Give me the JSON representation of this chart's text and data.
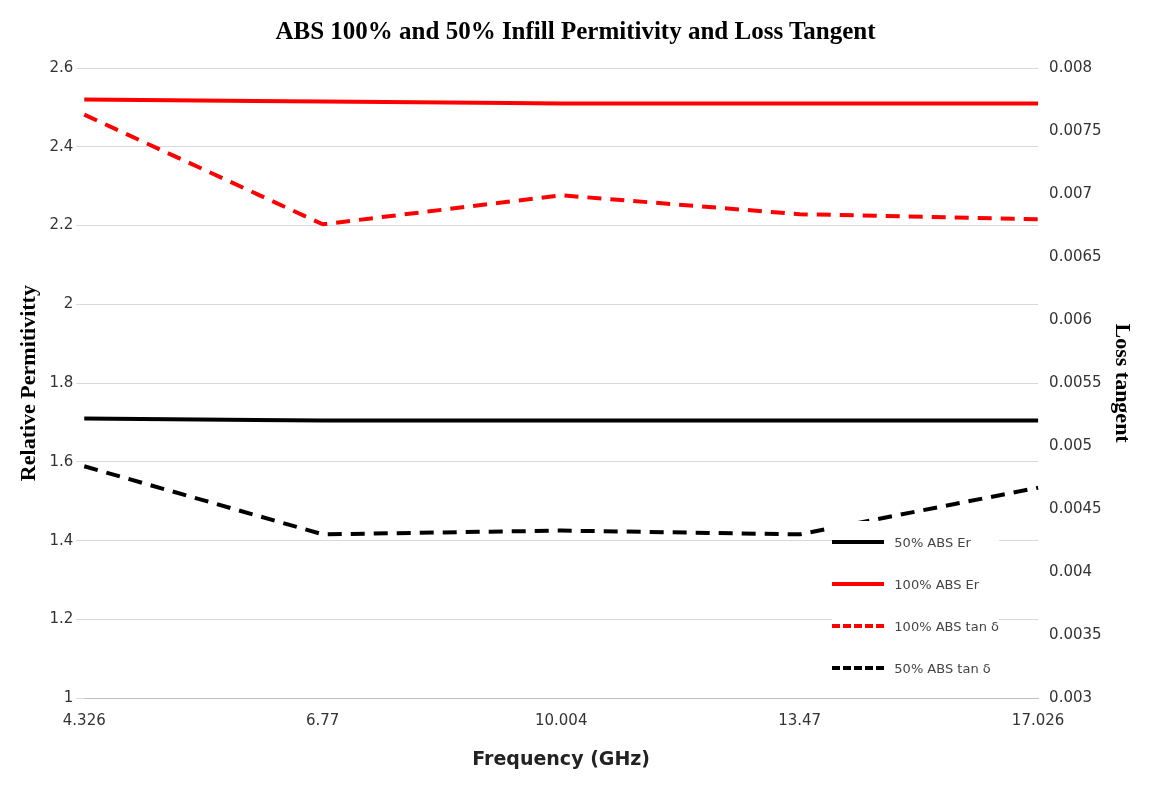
{
  "chart_data": {
    "type": "line",
    "title": "ABS 100% and 50% Infill Permitivity and Loss Tangent",
    "xlabel": "Frequency (GHz)",
    "ylabel": "Relative Permitivitty",
    "y2label": "Loss tangent",
    "categories": [
      "4.326",
      "6.77",
      "10.004",
      "13.47",
      "17.026"
    ],
    "ylim": [
      1,
      2.6
    ],
    "yticks": [
      1,
      1.2,
      1.4,
      1.6,
      1.8,
      2,
      2.2,
      2.4,
      2.6
    ],
    "y2lim": [
      0.003,
      0.008
    ],
    "y2ticks": [
      0.003,
      0.0035,
      0.004,
      0.0045,
      0.005,
      0.0055,
      0.006,
      0.0065,
      0.007,
      0.0075,
      0.008
    ],
    "grid": "y",
    "legend": "bottom right",
    "marker": "none",
    "series": [
      {
        "name": "50% ABS Er",
        "color": "#000000",
        "line_style": "solid",
        "values": [
          1.71,
          1.705,
          1.705,
          1.705,
          1.705
        ]
      },
      {
        "name": "100% ABS Er",
        "color": "#ff0000",
        "line_style": "solid",
        "values": [
          2.52,
          2.515,
          2.51,
          2.51,
          2.51
        ]
      },
      {
        "name": "100% ABS tan δ",
        "color": "#ff0000",
        "line_style": "dashed",
        "axis": "y2",
        "values": [
          0.00763,
          0.00676,
          0.00699,
          0.00684,
          0.0068
        ]
      },
      {
        "name": "50% ABS tan δ",
        "color": "#000000",
        "line_style": "dashed",
        "axis": "y2",
        "values": [
          0.00484,
          0.0043,
          0.00433,
          0.0043,
          0.00467
        ]
      }
    ]
  }
}
